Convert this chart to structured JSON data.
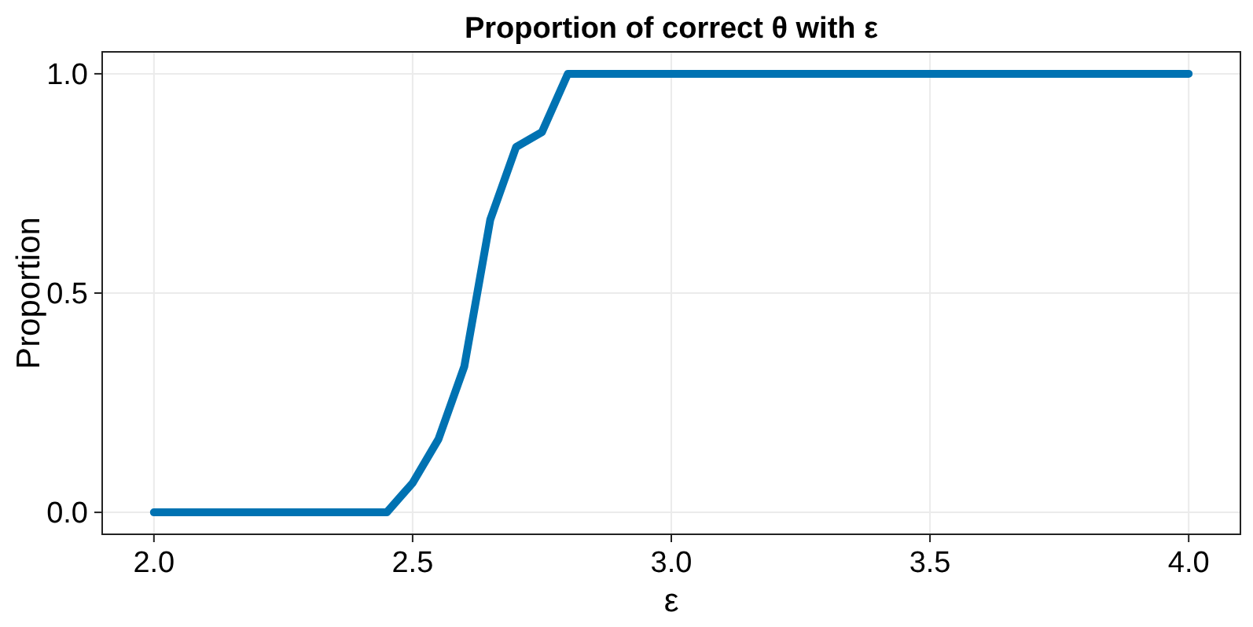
{
  "chart_data": {
    "type": "line",
    "title": "Proportion of correct θ with ε",
    "xlabel": "ε",
    "ylabel": "Proportion",
    "x": [
      2.0,
      2.05,
      2.1,
      2.15,
      2.2,
      2.25,
      2.3,
      2.35,
      2.4,
      2.45,
      2.5,
      2.55,
      2.6,
      2.65,
      2.7,
      2.75,
      2.8,
      2.85,
      2.9,
      2.95,
      3.0,
      3.05,
      3.1,
      3.15,
      3.2,
      3.25,
      3.3,
      3.35,
      3.4,
      3.45,
      3.5,
      3.55,
      3.6,
      3.65,
      3.7,
      3.75,
      3.8,
      3.85,
      3.9,
      3.95,
      4.0
    ],
    "series": [
      {
        "color": "#0072b2",
        "values": [
          0,
          0,
          0,
          0,
          0,
          0,
          0,
          0,
          0,
          0,
          0.067,
          0.167,
          0.333,
          0.667,
          0.833,
          0.867,
          1,
          1,
          1,
          1,
          1,
          1,
          1,
          1,
          1,
          1,
          1,
          1,
          1,
          1,
          1,
          1,
          1,
          1,
          1,
          1,
          1,
          1,
          1,
          1,
          1
        ]
      }
    ],
    "xlim": [
      1.9,
      4.1
    ],
    "ylim": [
      -0.05,
      1.05
    ],
    "xticks": [
      {
        "value": 2,
        "label": "2.0"
      },
      2.5,
      {
        "value": 3,
        "label": "3.0"
      },
      3.5,
      {
        "value": 4,
        "label": "4.0"
      }
    ],
    "yticks": [
      {
        "value": 0,
        "label": "0.0"
      },
      0.5,
      {
        "value": 1,
        "label": "1.0"
      }
    ],
    "grid": true,
    "line_style": "solid"
  }
}
